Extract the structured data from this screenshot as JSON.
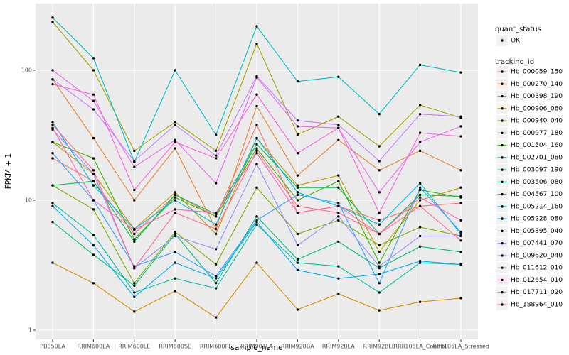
{
  "chart_data": {
    "type": "line",
    "x_label": "sample_name",
    "y_label": "FPKM + 1",
    "log_scale": true,
    "grid": true,
    "categories": [
      "PB350LA",
      "RRIM600LA",
      "RRIM600LE",
      "RRIM600SE",
      "RRIM600PE",
      "RRIM901LA",
      "RRIM928BA",
      "RRIM928LA",
      "RRIM928LE",
      "RRII105LA_Control",
      "RRII105LA_Stressed"
    ],
    "ylim": [
      0.849,
      326
    ],
    "yticks": [
      1,
      10,
      100
    ],
    "shape_legend": {
      "title": "quant_status",
      "labels": [
        "OK"
      ]
    },
    "legend_title": "tracking_id",
    "series": [
      {
        "name": "Hb_000059_150",
        "color": "#F8766D",
        "values": [
          21,
          14,
          5.5,
          11,
          7.5,
          38,
          8,
          9,
          7,
          9,
          9.5
        ]
      },
      {
        "name": "Hb_000270_140",
        "color": "#EA8331",
        "values": [
          85,
          30,
          10,
          25,
          6,
          53,
          15.5,
          29,
          17,
          24,
          17
        ]
      },
      {
        "name": "Hb_000398_190",
        "color": "#D89000",
        "values": [
          3.3,
          2.3,
          1.39,
          2.0,
          1.25,
          3.3,
          1.44,
          1.9,
          1.42,
          1.65,
          1.76
        ]
      },
      {
        "name": "Hb_000906_060",
        "color": "#C09B00",
        "values": [
          28,
          16,
          6,
          11.5,
          5.5,
          30,
          13,
          15.5,
          4,
          10,
          12.5
        ]
      },
      {
        "name": "Hb_000940_040",
        "color": "#A3A500",
        "values": [
          235,
          100,
          24,
          40,
          24,
          160,
          32,
          44,
          26,
          54,
          43
        ]
      },
      {
        "name": "Hb_000977_180",
        "color": "#7CAE00",
        "values": [
          13,
          8.5,
          2.3,
          5.7,
          3.2,
          12.5,
          5.5,
          7,
          4.5,
          6.2,
          5.3
        ]
      },
      {
        "name": "Hb_001504_160",
        "color": "#39B600",
        "values": [
          28,
          21,
          5,
          10.5,
          7.5,
          25,
          10,
          14,
          3.3,
          12,
          10.5
        ]
      },
      {
        "name": "Hb_002701_080",
        "color": "#00BB4E",
        "values": [
          13,
          14,
          4.8,
          11,
          7.8,
          27,
          12.5,
          12.5,
          5.5,
          11,
          10.7
        ]
      },
      {
        "name": "Hb_003097_190",
        "color": "#00BF7D",
        "values": [
          6.8,
          3.8,
          2.2,
          5.5,
          2.3,
          7.5,
          3.5,
          4.8,
          3.0,
          4.4,
          4.0
        ]
      },
      {
        "name": "Hb_003506_080",
        "color": "#00C1A3",
        "values": [
          9.5,
          5.4,
          1.95,
          2.5,
          2.1,
          6.5,
          3.3,
          3.1,
          1.95,
          3.3,
          3.2
        ]
      },
      {
        "name": "Hb_004567_100",
        "color": "#00BFC4",
        "values": [
          254,
          124,
          19.7,
          100,
          31.8,
          218,
          82,
          89,
          46,
          110,
          96
        ]
      },
      {
        "name": "Hb_005214_160",
        "color": "#00BAE0",
        "values": [
          40,
          13,
          6,
          10,
          6.5,
          30,
          11.5,
          9,
          6.5,
          13.5,
          5.5
        ]
      },
      {
        "name": "Hb_005228_080",
        "color": "#00B0F6",
        "values": [
          9,
          4.5,
          1.8,
          3.3,
          2.5,
          6.8,
          2.9,
          2.5,
          2.7,
          3.4,
          3.2
        ]
      },
      {
        "name": "Hb_005895_040",
        "color": "#35A2FF",
        "values": [
          23,
          10,
          3.1,
          4,
          2.6,
          7,
          11,
          9.5,
          2.3,
          12.5,
          5.7
        ]
      },
      {
        "name": "Hb_007441_070",
        "color": "#9590FF",
        "values": [
          35,
          16,
          3.0,
          5.3,
          4.2,
          19,
          4.5,
          7.5,
          3.1,
          5.3,
          5.3
        ]
      },
      {
        "name": "Hb_009620_040",
        "color": "#C77CFF",
        "values": [
          85,
          50,
          20,
          38,
          22,
          90,
          41,
          38,
          20,
          46,
          44
        ]
      },
      {
        "name": "Hb_011612_010",
        "color": "#E76BF3",
        "values": [
          100,
          58,
          18,
          29,
          13.5,
          88,
          37,
          36,
          11.5,
          28,
          37
        ]
      },
      {
        "name": "Hb_012654_010",
        "color": "#FA62DB",
        "values": [
          78,
          65,
          12,
          28,
          21,
          65,
          23,
          36,
          8,
          33,
          31
        ]
      },
      {
        "name": "Hb_017711_020",
        "color": "#FF62BC",
        "values": [
          36,
          10,
          5.9,
          8.5,
          8,
          23,
          8,
          9,
          5.5,
          10.5,
          7
        ]
      },
      {
        "name": "Hb_188964_010",
        "color": "#FF6C91",
        "values": [
          38,
          17,
          3,
          8,
          6,
          24,
          9,
          8,
          5.5,
          9,
          4.9
        ]
      }
    ]
  }
}
